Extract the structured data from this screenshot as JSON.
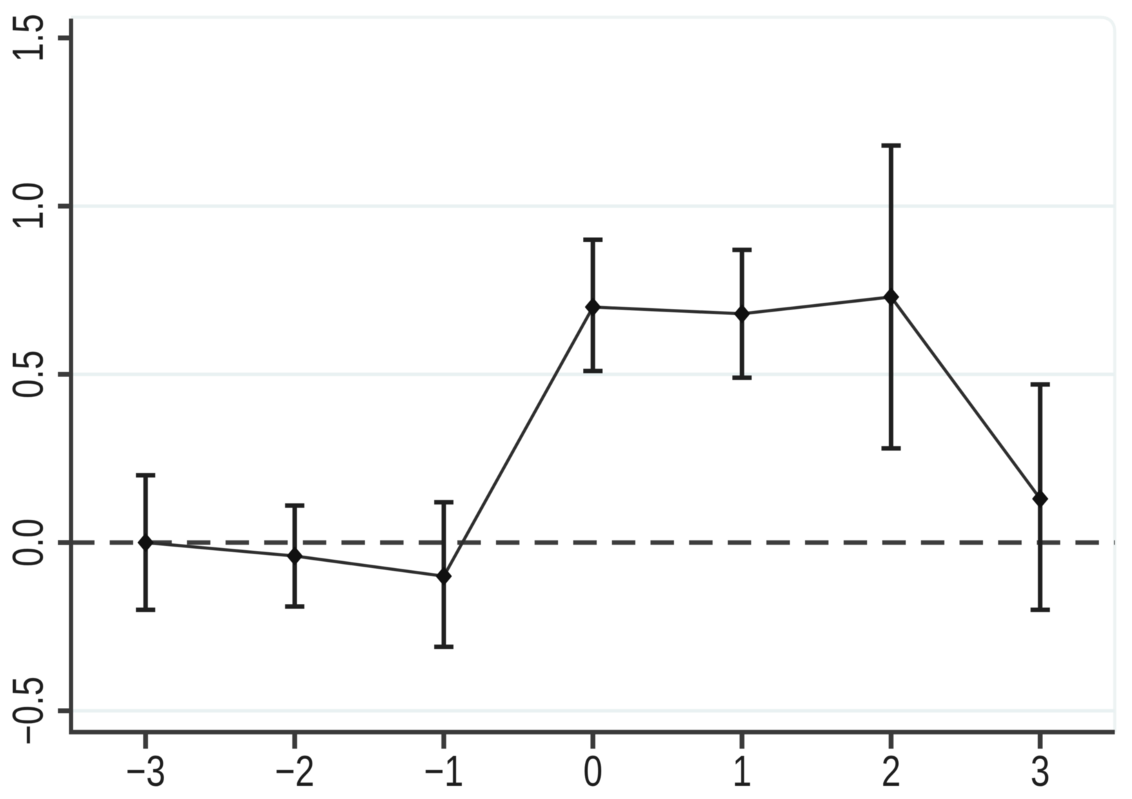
{
  "figure": {
    "description": "Event-study coefficient plot with 95% confidence interval error bars and dashed zero reference line"
  },
  "chart_data": {
    "type": "line",
    "title": "",
    "xlabel": "",
    "ylabel": "",
    "legend": "none",
    "grid": "faint horizontal gridlines at labeled ticks",
    "x": [
      -3,
      -2,
      -1,
      0,
      1,
      2,
      3
    ],
    "x_tick_labels": [
      "−3",
      "−2",
      "−1",
      "0",
      "1",
      "2",
      "3"
    ],
    "series": [
      {
        "name": "point-estimate",
        "values": [
          0.0,
          -0.04,
          -0.1,
          0.7,
          0.68,
          0.73,
          0.13
        ],
        "ci_low": [
          -0.2,
          -0.19,
          -0.31,
          0.51,
          0.49,
          0.28,
          -0.2
        ],
        "ci_high": [
          0.2,
          0.11,
          0.12,
          0.9,
          0.87,
          1.18,
          0.47
        ]
      }
    ],
    "y_ticks": [
      1.5,
      1.0,
      0.5,
      0.0,
      -0.5
    ],
    "y_tick_labels": [
      "1.5",
      "1.0",
      "0.5",
      "0.0",
      "−0.5"
    ],
    "gridline_values": [
      1.0,
      0.5,
      -0.5
    ],
    "reference_line_y": 0,
    "xlim": [
      -3.5,
      3.5
    ],
    "ylim": [
      -0.5635,
      1.5615
    ],
    "marker": "filled-diamond",
    "colors": {
      "background": "#ffffff",
      "axis": "#3a3a3a",
      "tick_label": "#1e1e1e",
      "series_line": "#2e2e2e",
      "error_bar": "#1f1f1f",
      "marker": "#101010",
      "reference_line": "#3d3d3d",
      "gridline": "#e9f1f2",
      "panel_border": "#edf3f3"
    }
  }
}
